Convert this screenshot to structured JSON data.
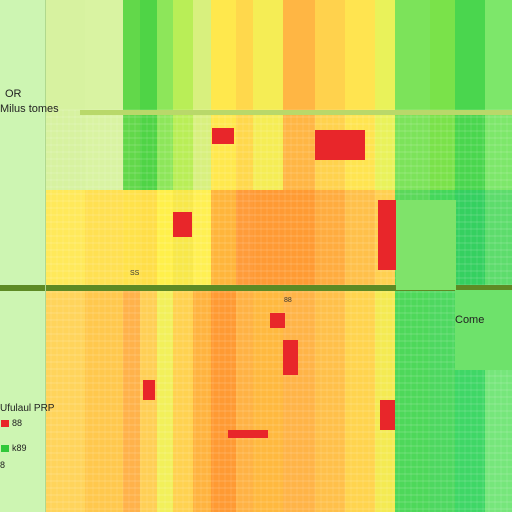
{
  "labels": {
    "top_left": "OR",
    "left_title": "Milus tomes",
    "right_mid": "Come",
    "legend_title": "Ufulaul PRP",
    "legend_row1": "88",
    "legend_row2": "k89",
    "legend_row3": "8",
    "center_small": "SS",
    "mid_small": "88"
  },
  "legend_colors": [
    "#e8262a",
    "#31c83a",
    "#f7e84a"
  ]
}
